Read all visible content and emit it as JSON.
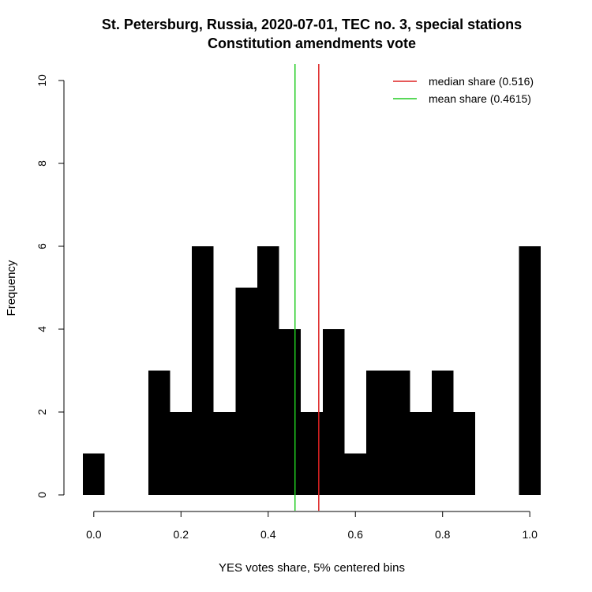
{
  "chart_data": {
    "type": "bar",
    "title": "St. Petersburg, Russia, 2020-07-01, TEC no. 3, special stations",
    "subtitle": "Constitution amendments vote",
    "xlabel": "YES votes share, 5% centered bins",
    "ylabel": "Frequency",
    "xlim": [
      -0.025,
      1.025
    ],
    "ylim": [
      0,
      10
    ],
    "x_ticks": [
      0.0,
      0.2,
      0.4,
      0.6,
      0.8,
      1.0
    ],
    "x_tick_labels": [
      "0.0",
      "0.2",
      "0.4",
      "0.6",
      "0.8",
      "1.0"
    ],
    "y_ticks": [
      0,
      2,
      4,
      6,
      8,
      10
    ],
    "y_tick_labels": [
      "0",
      "2",
      "4",
      "6",
      "8",
      "10"
    ],
    "bin_width": 0.05,
    "categories": [
      "0.00",
      "0.05",
      "0.10",
      "0.15",
      "0.20",
      "0.25",
      "0.30",
      "0.35",
      "0.40",
      "0.45",
      "0.50",
      "0.55",
      "0.60",
      "0.65",
      "0.70",
      "0.75",
      "0.80",
      "0.85",
      "0.90",
      "0.95",
      "1.00"
    ],
    "bin_centers": [
      0.0,
      0.05,
      0.1,
      0.15,
      0.2,
      0.25,
      0.3,
      0.35,
      0.4,
      0.45,
      0.5,
      0.55,
      0.6,
      0.65,
      0.7,
      0.75,
      0.8,
      0.85,
      0.9,
      0.95,
      1.0
    ],
    "values": [
      1,
      0,
      0,
      3,
      2,
      6,
      2,
      5,
      6,
      4,
      2,
      4,
      1,
      3,
      3,
      2,
      3,
      2,
      0,
      0,
      6
    ],
    "bar_color": "#000000",
    "reference_lines": [
      {
        "name": "median share (0.516)",
        "x": 0.516,
        "color": "#dd2222"
      },
      {
        "name": "mean share (0.4615)",
        "x": 0.4615,
        "color": "#22cc22"
      }
    ],
    "legend": {
      "placement": "top-right",
      "entries": [
        {
          "label": "median share (0.516)",
          "color": "#dd2222"
        },
        {
          "label": "mean share (0.4615)",
          "color": "#22cc22"
        }
      ]
    },
    "grid": false
  }
}
